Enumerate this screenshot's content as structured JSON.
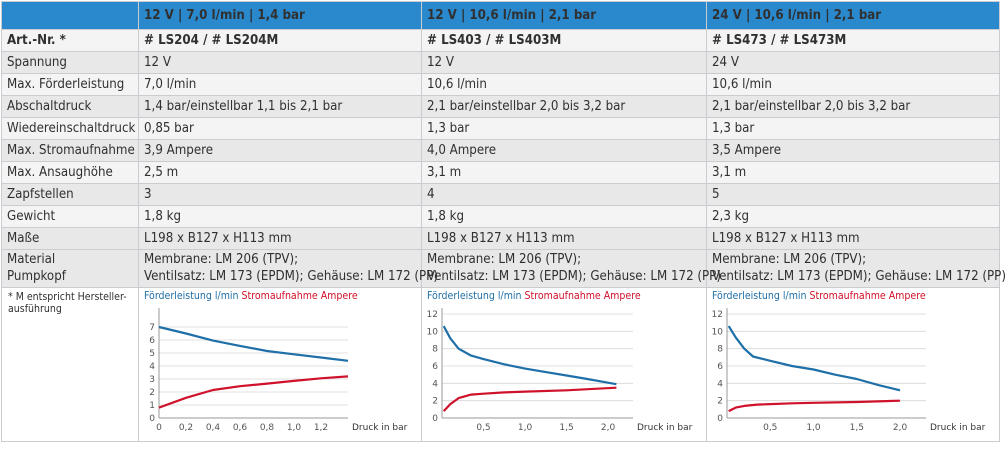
{
  "header": {
    "col1": "12 V | 7,0 l/min | 1,4 bar",
    "col2": "12 V | 10,6 l/min | 2,1 bar",
    "col3": "24 V | 10,6 l/min | 2,1 bar"
  },
  "rows": [
    {
      "label": "Art.-Nr. *",
      "v1": "# LS204 / # LS204M",
      "v2": "# LS403 / # LS403M",
      "v3": "# LS473 / # LS473M"
    },
    {
      "label": "Spannung",
      "v1": "12 V",
      "v2": "12 V",
      "v3": "24 V"
    },
    {
      "label": "Max. Förderleistung",
      "v1": "7,0 l/min",
      "v2": "10,6 l/min",
      "v3": "10,6 l/min"
    },
    {
      "label": "Abschaltdruck",
      "v1": "1,4 bar/einstellbar 1,1 bis 2,1 bar",
      "v2": "2,1 bar/einstellbar 2,0 bis 3,2 bar",
      "v3": "2,1 bar/einstellbar 2,0 bis 3,2 bar"
    },
    {
      "label": "Wiedereinschaltdruck",
      "v1": "0,85 bar",
      "v2": "1,3 bar",
      "v3": "1,3 bar"
    },
    {
      "label": "Max. Stromaufnahme",
      "v1": "3,9 Ampere",
      "v2": "4,0 Ampere",
      "v3": "3,5 Ampere"
    },
    {
      "label": "Max. Ansaughöhe",
      "v1": "2,5 m",
      "v2": "3,1 m",
      "v3": "3,1 m"
    },
    {
      "label": "Zapfstellen",
      "v1": "3",
      "v2": "4",
      "v3": "5"
    },
    {
      "label": "Gewicht",
      "v1": "1,8 kg",
      "v2": "1,8 kg",
      "v3": "2,3 kg"
    },
    {
      "label": "Maße",
      "v1": "L198 x B127 x H113 mm",
      "v2": "L198 x B127 x H113 mm",
      "v3": "L198 x B127 x H113 mm"
    }
  ],
  "material": {
    "label1": "Material",
    "label2": "Pumpkopf",
    "line1": "Membrane: LM 206 (TPV);",
    "line2": "Ventilsatz: LM 173 (EPDM); Gehäuse: LM 172 (PP)"
  },
  "footnote": "* M entspricht Hersteller-ausführung",
  "legend": {
    "flow": "Förderleistung l/min",
    "current": "Stromaufnahme Ampere"
  },
  "colors": {
    "header_bg": "#2a88cc",
    "flow_line": "#1f6fa8",
    "current_line": "#d0112b"
  },
  "chart_data": [
    {
      "type": "line",
      "xlabel": "Druck in bar",
      "xticks": [
        0,
        0.2,
        0.4,
        0.6,
        0.8,
        1.0,
        1.2
      ],
      "xtick_labels": [
        "0",
        "0,2",
        "0,4",
        "0,6",
        "0,8",
        "1,0",
        "1,2"
      ],
      "yticks": [
        0,
        1,
        2,
        3,
        4,
        5,
        6,
        7
      ],
      "xlim": [
        0,
        1.4
      ],
      "ylim": [
        0,
        8
      ],
      "series": [
        {
          "name": "Förderleistung l/min",
          "x": [
            0,
            0.2,
            0.4,
            0.6,
            0.8,
            1.0,
            1.2,
            1.4
          ],
          "values": [
            7.0,
            6.5,
            5.95,
            5.55,
            5.15,
            4.9,
            4.65,
            4.4
          ]
        },
        {
          "name": "Stromaufnahme Ampere",
          "x": [
            0,
            0.2,
            0.4,
            0.6,
            0.8,
            1.0,
            1.2,
            1.4
          ],
          "values": [
            0.8,
            1.55,
            2.15,
            2.45,
            2.65,
            2.85,
            3.05,
            3.2
          ]
        }
      ]
    },
    {
      "type": "line",
      "xlabel": "Druck in bar",
      "xticks": [
        0.5,
        1.0,
        1.5,
        2.0
      ],
      "xtick_labels": [
        "0,5",
        "1,0",
        "1,5",
        "2,0"
      ],
      "yticks": [
        2,
        4,
        6,
        8,
        10,
        12
      ],
      "xlim": [
        0,
        2.3
      ],
      "ylim": [
        0,
        12
      ],
      "series": [
        {
          "name": "Förderleistung l/min",
          "x": [
            0.02,
            0.1,
            0.2,
            0.35,
            0.5,
            0.75,
            1.0,
            1.25,
            1.5,
            1.75,
            2.1
          ],
          "values": [
            10.6,
            9.2,
            8.0,
            7.2,
            6.8,
            6.2,
            5.7,
            5.3,
            4.9,
            4.5,
            3.9
          ]
        },
        {
          "name": "Stromaufnahme Ampere",
          "x": [
            0.02,
            0.1,
            0.2,
            0.35,
            0.5,
            0.75,
            1.0,
            1.5,
            2.1
          ],
          "values": [
            0.8,
            1.6,
            2.3,
            2.7,
            2.8,
            2.95,
            3.05,
            3.2,
            3.5
          ]
        }
      ]
    },
    {
      "type": "line",
      "xlabel": "Druck in bar",
      "xticks": [
        0.5,
        1.0,
        1.5,
        2.0
      ],
      "xtick_labels": [
        "0,5",
        "1,0",
        "1,5",
        "2,0"
      ],
      "yticks": [
        2,
        4,
        6,
        8,
        10,
        12
      ],
      "xlim": [
        0,
        2.3
      ],
      "ylim": [
        0,
        12
      ],
      "series": [
        {
          "name": "Förderleistung l/min",
          "x": [
            0.02,
            0.1,
            0.2,
            0.3,
            0.5,
            0.75,
            1.0,
            1.25,
            1.5,
            1.75,
            2.0
          ],
          "values": [
            10.6,
            9.3,
            8.0,
            7.1,
            6.6,
            6.0,
            5.6,
            5.0,
            4.5,
            3.8,
            3.2
          ]
        },
        {
          "name": "Stromaufnahme Ampere",
          "x": [
            0.02,
            0.1,
            0.2,
            0.35,
            0.5,
            0.75,
            1.0,
            1.5,
            2.0
          ],
          "values": [
            0.8,
            1.2,
            1.4,
            1.55,
            1.6,
            1.7,
            1.75,
            1.85,
            2.0
          ]
        }
      ]
    }
  ]
}
